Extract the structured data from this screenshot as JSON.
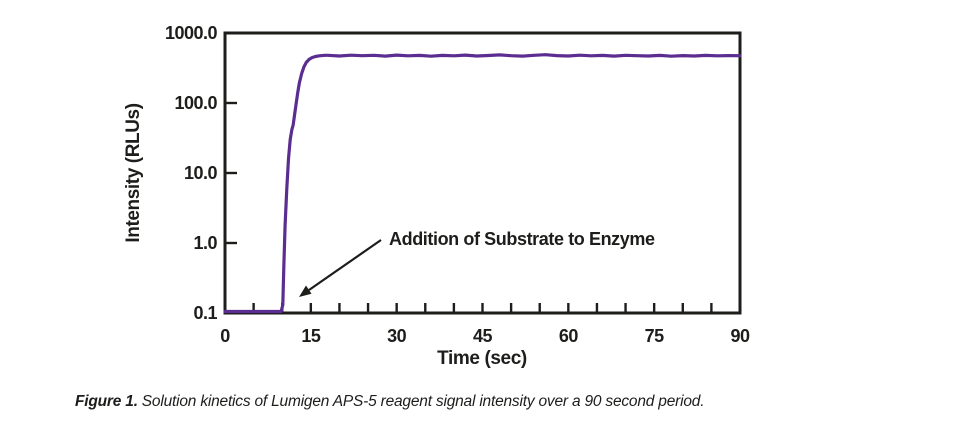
{
  "caption": {
    "label": "Figure 1.",
    "text": "Solution kinetics of Lumigen APS-5 reagent signal intensity over a 90 second period."
  },
  "chart_data": {
    "type": "line",
    "title": "",
    "xlabel": "Time (sec)",
    "ylabel": "Intensity (RLUs)",
    "xlim": [
      0,
      90
    ],
    "ylim": [
      0.1,
      1000
    ],
    "y_scale": "log",
    "grid": false,
    "legend": "none",
    "x_ticks": [
      0,
      15,
      30,
      45,
      60,
      75,
      90
    ],
    "x_tick_labels": [
      "0",
      "15",
      "30",
      "45",
      "60",
      "75",
      "90"
    ],
    "x_minor_tick_step": 5,
    "y_ticks": [
      0.1,
      1,
      10,
      100,
      1000
    ],
    "y_tick_labels": [
      "0.1",
      "1.0",
      "10.0",
      "100.0",
      "1000.0"
    ],
    "line_color": "#5b2d90",
    "axis_color": "#1d1d1b",
    "annotation": {
      "text": "Addition of Substrate to Enzyme",
      "arrow_points_to": {
        "t": 13.5,
        "v": 0.18
      }
    },
    "series": [
      {
        "name": "Lumigen APS-5 signal intensity",
        "points": [
          [
            0,
            0.105
          ],
          [
            2,
            0.105
          ],
          [
            4,
            0.105
          ],
          [
            6,
            0.105
          ],
          [
            8,
            0.105
          ],
          [
            9.8,
            0.105
          ],
          [
            10.1,
            0.13
          ],
          [
            10.3,
            0.5
          ],
          [
            10.5,
            1.8
          ],
          [
            10.8,
            6
          ],
          [
            11.1,
            16
          ],
          [
            11.4,
            30
          ],
          [
            11.7,
            42
          ],
          [
            11.9,
            48
          ],
          [
            12.1,
            62
          ],
          [
            12.4,
            95
          ],
          [
            12.7,
            140
          ],
          [
            13.0,
            195
          ],
          [
            13.4,
            265
          ],
          [
            13.8,
            330
          ],
          [
            14.2,
            380
          ],
          [
            14.7,
            420
          ],
          [
            15.2,
            445
          ],
          [
            15.8,
            462
          ],
          [
            16.5,
            473
          ],
          [
            17.5,
            480
          ],
          [
            18,
            480
          ],
          [
            20,
            470
          ],
          [
            22,
            482
          ],
          [
            24,
            474
          ],
          [
            26,
            480
          ],
          [
            28,
            468
          ],
          [
            30,
            484
          ],
          [
            32,
            473
          ],
          [
            34,
            479
          ],
          [
            36,
            466
          ],
          [
            38,
            478
          ],
          [
            40,
            472
          ],
          [
            42,
            483
          ],
          [
            44,
            470
          ],
          [
            46,
            477
          ],
          [
            48,
            486
          ],
          [
            50,
            474
          ],
          [
            52,
            468
          ],
          [
            54,
            480
          ],
          [
            56,
            490
          ],
          [
            58,
            476
          ],
          [
            60,
            470
          ],
          [
            62,
            481
          ],
          [
            64,
            472
          ],
          [
            66,
            478
          ],
          [
            68,
            468
          ],
          [
            70,
            480
          ],
          [
            72,
            474
          ],
          [
            74,
            470
          ],
          [
            76,
            478
          ],
          [
            78,
            466
          ],
          [
            80,
            476
          ],
          [
            82,
            470
          ],
          [
            84,
            478
          ],
          [
            86,
            472
          ],
          [
            88,
            476
          ],
          [
            90,
            474
          ]
        ]
      }
    ]
  }
}
